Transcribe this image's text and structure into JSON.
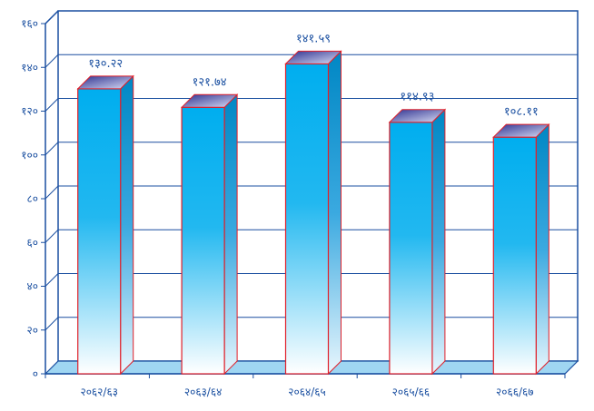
{
  "chart_data": {
    "type": "bar",
    "style": "3d-column",
    "categories": [
      "२०६२/६३",
      "२०६३/६४",
      "२०६४/६५",
      "२०६५/६६",
      "२०६६/६७"
    ],
    "values": [
      130.22,
      121.74,
      141.59,
      114.93,
      108.11
    ],
    "value_labels": [
      "१३०.२२",
      "१२१.७४",
      "१४१.५९",
      "११४.९३",
      "१०८.११"
    ],
    "ylim": [
      0,
      160
    ],
    "yticks": [
      0,
      20,
      40,
      60,
      80,
      100,
      120,
      140,
      160
    ],
    "ytick_labels": [
      "०",
      "२०",
      "४०",
      "६०",
      "८०",
      "१००",
      "१२०",
      "१४०",
      "१६०"
    ],
    "grid": true,
    "legend": "none",
    "colors": {
      "bar_top": "#00aeef",
      "bar_bottom": "#ffffff",
      "bar_outline": "#e0202a",
      "bar_side": "#0087c4",
      "bar_cap": "#3b3f9a",
      "floor": "#9fd6f2",
      "axis": "#1a4fa0",
      "grid": "#1a4fa0"
    }
  }
}
